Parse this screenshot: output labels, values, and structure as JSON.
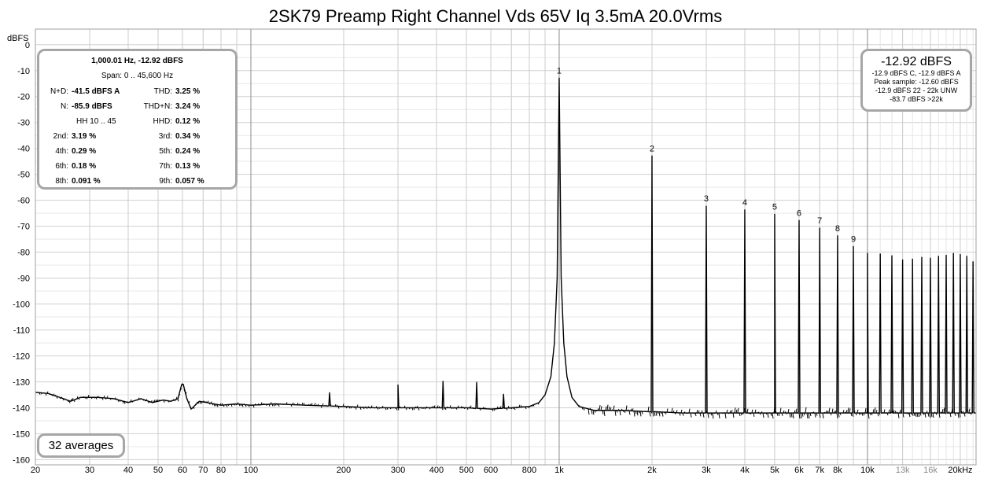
{
  "title": "2SK79 Preamp Right Channel Vds 65V Iq 3.5mA 20.0Vrms",
  "y_unit_label": "dBFS",
  "stats_box": {
    "header": "1,000.01 Hz, -12.92 dBFS",
    "span": "Span: 0 .. 45,600 Hz",
    "rows": [
      {
        "l1": "N+D:",
        "v1": "-41.5 dBFS A",
        "l2": "THD:",
        "v2": "3.25 %"
      },
      {
        "l1": "N:",
        "v1": "-85.9 dBFS",
        "l2": "THD+N:",
        "v2": "3.24 %"
      },
      {
        "l1": "",
        "v1": "HH 10 .. 45",
        "l2": "HHD:",
        "v2": "0.12 %"
      },
      {
        "l1": "2nd:",
        "v1": "3.19 %",
        "l2": "3rd:",
        "v2": "0.34 %"
      },
      {
        "l1": "4th:",
        "v1": "0.29 %",
        "l2": "5th:",
        "v2": "0.24 %"
      },
      {
        "l1": "6th:",
        "v1": "0.18 %",
        "l2": "7th:",
        "v2": "0.13 %"
      },
      {
        "l1": "8th:",
        "v1": "0.091 %",
        "l2": "9th:",
        "v2": "0.057 %"
      }
    ]
  },
  "level_box": {
    "main": "-12.92 dBFS",
    "lines": [
      "-12.9 dBFS C, -12.9 dBFS A",
      "Peak sample: -12.60 dBFS",
      "-12.9 dBFS 22 - 22k UNW",
      "-83.7 dBFS >22k"
    ]
  },
  "averages_label": "32 averages",
  "chart_data": {
    "type": "line",
    "title": "2SK79 Preamp Right Channel Vds 65V Iq 3.5mA 20.0Vrms",
    "xlabel": "",
    "ylabel": "dBFS",
    "x_scale": "log",
    "xlim": [
      20,
      22500
    ],
    "ylim": [
      -162,
      6
    ],
    "grid": true,
    "x_ticks": [
      {
        "v": 20,
        "t": "20"
      },
      {
        "v": 30,
        "t": "30"
      },
      {
        "v": 40,
        "t": "40"
      },
      {
        "v": 50,
        "t": "50"
      },
      {
        "v": 60,
        "t": "60"
      },
      {
        "v": 70,
        "t": "70"
      },
      {
        "v": 80,
        "t": "80"
      },
      {
        "v": 90,
        "t": ""
      },
      {
        "v": 100,
        "t": "100"
      },
      {
        "v": 200,
        "t": "200"
      },
      {
        "v": 300,
        "t": "300"
      },
      {
        "v": 400,
        "t": "400"
      },
      {
        "v": 500,
        "t": "500"
      },
      {
        "v": 600,
        "t": "600"
      },
      {
        "v": 700,
        "t": ""
      },
      {
        "v": 800,
        "t": "800"
      },
      {
        "v": 900,
        "t": ""
      },
      {
        "v": 1000,
        "t": "1k"
      },
      {
        "v": 2000,
        "t": "2k"
      },
      {
        "v": 3000,
        "t": "3k"
      },
      {
        "v": 4000,
        "t": "4k"
      },
      {
        "v": 5000,
        "t": "5k"
      },
      {
        "v": 6000,
        "t": "6k"
      },
      {
        "v": 7000,
        "t": "7k"
      },
      {
        "v": 8000,
        "t": "8k"
      },
      {
        "v": 9000,
        "t": ""
      },
      {
        "v": 10000,
        "t": "10k"
      },
      {
        "v": 13000,
        "t": "13k",
        "muted": true
      },
      {
        "v": 16000,
        "t": "16k",
        "muted": true
      },
      {
        "v": 20000,
        "t": "20kHz"
      }
    ],
    "y_ticks": [
      0,
      -10,
      -20,
      -30,
      -40,
      -50,
      -60,
      -70,
      -80,
      -90,
      -100,
      -110,
      -120,
      -130,
      -140,
      -150,
      -160
    ],
    "noise_floor": [
      [
        20,
        -134
      ],
      [
        22,
        -134.5
      ],
      [
        24,
        -136
      ],
      [
        26,
        -137.5
      ],
      [
        28,
        -136
      ],
      [
        32,
        -136
      ],
      [
        36,
        -136.5
      ],
      [
        40,
        -138
      ],
      [
        44,
        -136.5
      ],
      [
        48,
        -138
      ],
      [
        52,
        -137
      ],
      [
        55,
        -137.5
      ],
      [
        58,
        -136.5
      ],
      [
        60,
        -131
      ],
      [
        62,
        -136.5
      ],
      [
        64,
        -140.5
      ],
      [
        68,
        -137.5
      ],
      [
        72,
        -138
      ],
      [
        76,
        -138.5
      ],
      [
        80,
        -139
      ],
      [
        90,
        -138.5
      ],
      [
        100,
        -139
      ],
      [
        120,
        -138.5
      ],
      [
        150,
        -139
      ],
      [
        200,
        -139.5
      ],
      [
        250,
        -140
      ],
      [
        300,
        -140
      ],
      [
        400,
        -140
      ],
      [
        500,
        -140
      ],
      [
        600,
        -140.5
      ],
      [
        700,
        -140
      ],
      [
        800,
        -139.5
      ],
      [
        860,
        -138
      ],
      [
        900,
        -135
      ],
      [
        940,
        -128
      ],
      [
        965,
        -115
      ],
      [
        985,
        -90
      ],
      [
        1000,
        -12.9
      ],
      [
        1015,
        -90
      ],
      [
        1035,
        -115
      ],
      [
        1060,
        -128
      ],
      [
        1100,
        -136
      ],
      [
        1160,
        -139.5
      ],
      [
        1300,
        -141
      ],
      [
        1600,
        -141
      ],
      [
        1950,
        -141.5
      ],
      [
        2050,
        -141.5
      ],
      [
        2500,
        -142
      ],
      [
        5000,
        -142
      ],
      [
        10000,
        -142
      ],
      [
        22500,
        -142
      ]
    ],
    "series": [
      {
        "label_markers": [
          "1",
          "2",
          "3",
          "4",
          "5",
          "6",
          "7",
          "8",
          "9"
        ],
        "harmonics": [
          {
            "f": 1000,
            "dB": -12.9
          },
          {
            "f": 2000,
            "dB": -42.9
          },
          {
            "f": 3000,
            "dB": -62.3
          },
          {
            "f": 4000,
            "dB": -63.7
          },
          {
            "f": 5000,
            "dB": -65.4
          },
          {
            "f": 6000,
            "dB": -67.8
          },
          {
            "f": 7000,
            "dB": -70.7
          },
          {
            "f": 8000,
            "dB": -73.7
          },
          {
            "f": 9000,
            "dB": -77.8
          },
          {
            "f": 10000,
            "dB": -80.5
          },
          {
            "f": 11000,
            "dB": -80.7
          },
          {
            "f": 12000,
            "dB": -81.4
          },
          {
            "f": 13000,
            "dB": -83.0
          },
          {
            "f": 14000,
            "dB": -82.7
          },
          {
            "f": 15000,
            "dB": -82.0
          },
          {
            "f": 16000,
            "dB": -82.3
          },
          {
            "f": 17000,
            "dB": -81.6
          },
          {
            "f": 18000,
            "dB": -81.2
          },
          {
            "f": 19000,
            "dB": -80.5
          },
          {
            "f": 20000,
            "dB": -80.9
          },
          {
            "f": 21000,
            "dB": -81.6
          },
          {
            "f": 22000,
            "dB": -83.7
          }
        ],
        "spurs": [
          {
            "f": 60,
            "dB": -130.8
          },
          {
            "f": 180,
            "dB": -134.2
          },
          {
            "f": 300,
            "dB": -131.2
          },
          {
            "f": 420,
            "dB": -129.8
          },
          {
            "f": 540,
            "dB": -130.2
          },
          {
            "f": 660,
            "dB": -134.8
          }
        ]
      }
    ]
  }
}
